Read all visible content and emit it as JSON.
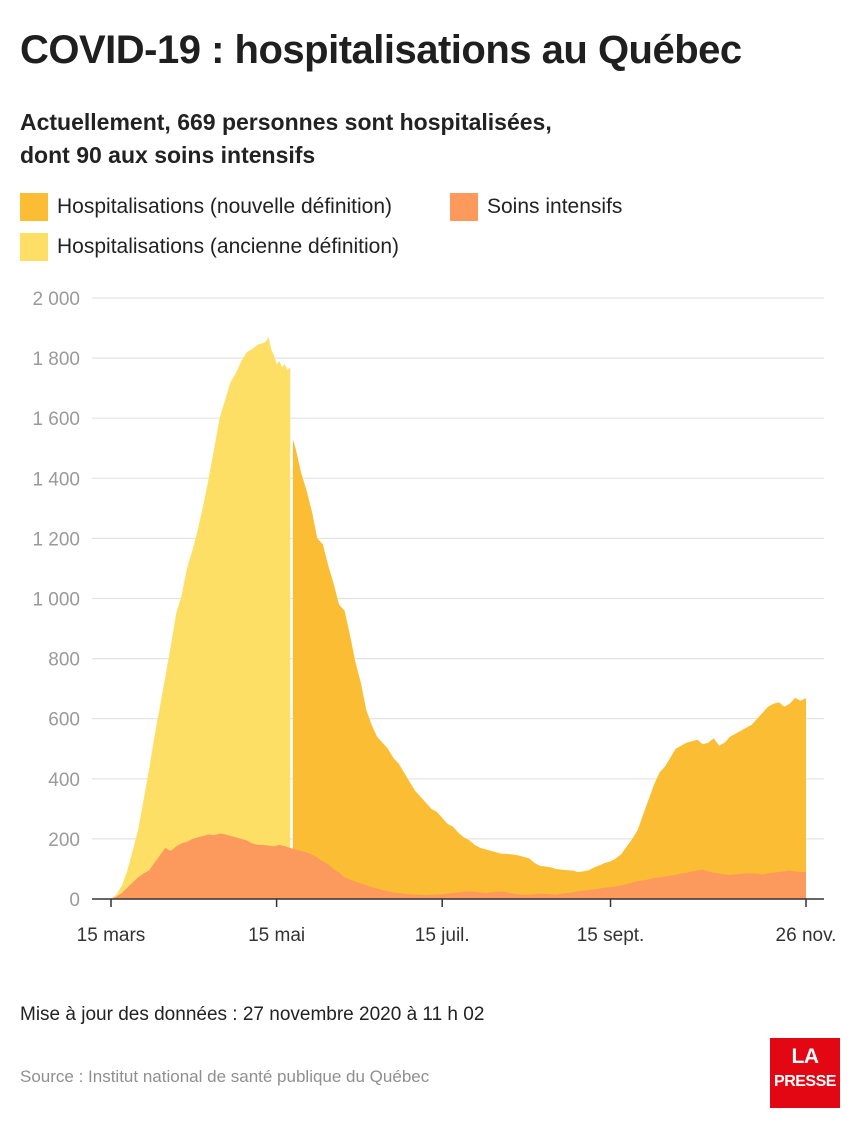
{
  "title": "COVID-19 : hospitalisations au Québec",
  "subtitle_line1": "Actuellement, 669 personnes sont hospitalisées,",
  "subtitle_line2": "dont 90 aux soins intensifs",
  "legend": [
    {
      "label": "Hospitalisations (nouvelle définition)",
      "color": "#fbbd33"
    },
    {
      "label": "Soins intensifs",
      "color": "#fc9a5e"
    },
    {
      "label": "Hospitalisations (ancienne définition)",
      "color": "#fedf66"
    }
  ],
  "footer": {
    "update": "Mise à jour des données : 27 novembre 2020 à 11 h 02",
    "source": "Source : Institut national de santé publique du Québec"
  },
  "logo": {
    "line1": "LA",
    "line2": "PRESSE",
    "color": "#e30613"
  },
  "chart_data": {
    "type": "area",
    "x_unit": "days since 2020-03-01",
    "ylim": [
      0,
      2000
    ],
    "xlim": [
      0,
      270
    ],
    "yticks": [
      {
        "value": 0,
        "label": "0"
      },
      {
        "value": 200,
        "label": "200"
      },
      {
        "value": 400,
        "label": "400"
      },
      {
        "value": 600,
        "label": "600"
      },
      {
        "value": 800,
        "label": "800"
      },
      {
        "value": 1000,
        "label": "1 000"
      },
      {
        "value": 1200,
        "label": "1 200"
      },
      {
        "value": 1400,
        "label": "1 400"
      },
      {
        "value": 1600,
        "label": "1 600"
      },
      {
        "value": 1800,
        "label": "1 800"
      },
      {
        "value": 2000,
        "label": "2 000"
      }
    ],
    "xticks": [
      {
        "value": 14,
        "label": "15 mars"
      },
      {
        "value": 75,
        "label": "15 mai"
      },
      {
        "value": 136,
        "label": "15 juil."
      },
      {
        "value": 198,
        "label": "15 sept."
      },
      {
        "value": 270,
        "label": "26 nov."
      }
    ],
    "grid": true,
    "series": [
      {
        "name": "Hospitalisations (ancienne définition)",
        "color": "#fedf66",
        "x": [
          14,
          16,
          18,
          20,
          22,
          24,
          26,
          28,
          30,
          32,
          34,
          36,
          38,
          40,
          42,
          44,
          46,
          48,
          50,
          52,
          54,
          56,
          58,
          60,
          62,
          64,
          66,
          68,
          70,
          71,
          72,
          73,
          74,
          75,
          76,
          77,
          78,
          79,
          80
        ],
        "y": [
          0,
          15,
          45,
          95,
          160,
          230,
          330,
          430,
          540,
          640,
          740,
          840,
          950,
          1010,
          1100,
          1160,
          1230,
          1310,
          1400,
          1500,
          1600,
          1660,
          1720,
          1750,
          1790,
          1820,
          1830,
          1845,
          1850,
          1855,
          1870,
          1830,
          1810,
          1780,
          1790,
          1770,
          1780,
          1760,
          1770
        ]
      },
      {
        "name": "Hospitalisations (nouvelle définition)",
        "color": "#fbbd33",
        "x": [
          81,
          82,
          84,
          86,
          88,
          90,
          92,
          94,
          96,
          98,
          100,
          102,
          104,
          106,
          108,
          110,
          112,
          114,
          116,
          118,
          120,
          122,
          124,
          126,
          128,
          130,
          132,
          134,
          136,
          138,
          140,
          142,
          144,
          146,
          148,
          150,
          152,
          154,
          156,
          158,
          160,
          162,
          164,
          166,
          168,
          170,
          172,
          174,
          176,
          178,
          180,
          182,
          184,
          186,
          188,
          190,
          192,
          194,
          196,
          198,
          200,
          202,
          204,
          206,
          208,
          210,
          212,
          214,
          216,
          218,
          220,
          222,
          224,
          226,
          228,
          230,
          232,
          234,
          236,
          238,
          240,
          242,
          244,
          246,
          248,
          250,
          252,
          254,
          256,
          258,
          260,
          262,
          264,
          266,
          268,
          270
        ],
        "y": [
          1530,
          1500,
          1420,
          1360,
          1290,
          1200,
          1180,
          1110,
          1050,
          980,
          960,
          880,
          790,
          720,
          630,
          580,
          540,
          520,
          500,
          470,
          450,
          420,
          390,
          360,
          340,
          320,
          300,
          290,
          270,
          250,
          240,
          220,
          205,
          195,
          180,
          170,
          165,
          160,
          155,
          150,
          150,
          148,
          145,
          140,
          135,
          120,
          110,
          108,
          105,
          100,
          98,
          96,
          95,
          90,
          92,
          96,
          105,
          112,
          120,
          125,
          135,
          150,
          175,
          200,
          230,
          280,
          330,
          380,
          420,
          440,
          470,
          500,
          510,
          520,
          525,
          530,
          515,
          520,
          535,
          510,
          520,
          540,
          550,
          560,
          570,
          580,
          600,
          620,
          640,
          650,
          655,
          640,
          650,
          670,
          660,
          669
        ]
      },
      {
        "name": "Soins intensifs",
        "color": "#fc9a5e",
        "x": [
          14,
          16,
          18,
          20,
          22,
          24,
          26,
          28,
          30,
          32,
          34,
          36,
          38,
          40,
          42,
          44,
          46,
          48,
          50,
          52,
          54,
          56,
          58,
          60,
          62,
          64,
          66,
          68,
          70,
          72,
          74,
          76,
          78,
          80,
          82,
          84,
          86,
          88,
          90,
          92,
          94,
          96,
          98,
          100,
          102,
          104,
          106,
          108,
          110,
          112,
          114,
          116,
          118,
          120,
          122,
          124,
          126,
          128,
          130,
          132,
          134,
          136,
          138,
          140,
          142,
          144,
          146,
          148,
          150,
          152,
          154,
          156,
          158,
          160,
          162,
          164,
          166,
          168,
          170,
          172,
          174,
          176,
          178,
          180,
          182,
          184,
          186,
          188,
          190,
          192,
          194,
          196,
          198,
          200,
          202,
          204,
          206,
          208,
          210,
          212,
          214,
          216,
          218,
          220,
          222,
          224,
          226,
          228,
          230,
          232,
          234,
          236,
          238,
          240,
          242,
          244,
          246,
          248,
          250,
          252,
          254,
          256,
          258,
          260,
          262,
          264,
          266,
          268,
          270
        ],
        "y": [
          0,
          8,
          20,
          38,
          55,
          72,
          85,
          95,
          120,
          145,
          170,
          160,
          175,
          185,
          190,
          200,
          205,
          210,
          215,
          212,
          218,
          215,
          210,
          205,
          200,
          195,
          185,
          180,
          180,
          178,
          175,
          180,
          176,
          170,
          165,
          160,
          155,
          148,
          138,
          125,
          115,
          100,
          88,
          72,
          65,
          58,
          52,
          46,
          40,
          35,
          30,
          26,
          22,
          20,
          18,
          16,
          15,
          14,
          13,
          14,
          15,
          16,
          18,
          20,
          22,
          24,
          25,
          24,
          22,
          20,
          22,
          24,
          25,
          22,
          18,
          16,
          14,
          15,
          16,
          18,
          17,
          16,
          15,
          18,
          20,
          22,
          26,
          28,
          30,
          32,
          35,
          38,
          40,
          42,
          45,
          50,
          55,
          60,
          62,
          65,
          70,
          72,
          75,
          78,
          80,
          85,
          88,
          92,
          95,
          98,
          92,
          88,
          85,
          82,
          80,
          82,
          84,
          86,
          85,
          84,
          82,
          86,
          88,
          90,
          92,
          95,
          92,
          90,
          90
        ]
      }
    ]
  }
}
